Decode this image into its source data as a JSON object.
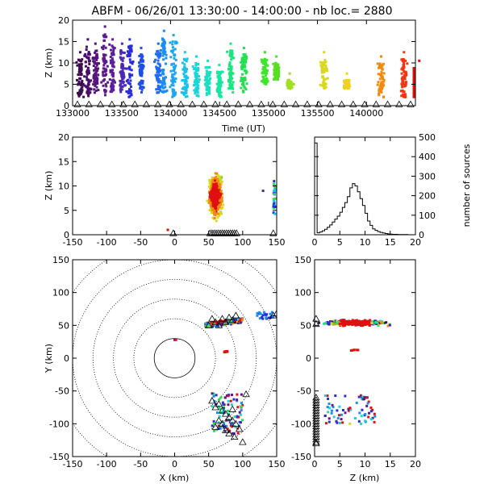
{
  "title": {
    "station": "ABFM",
    "date": "06/26/01",
    "time_range": "13:30:00 - 14:00:00",
    "count_label": "nb loc.=",
    "count_value": "2880"
  },
  "chart_data": [
    {
      "id": "altitude-vs-time",
      "type": "scatter",
      "xlabel": "Time (UT)",
      "ylabel": "Z (km)",
      "xlim": [
        133000,
        140000
      ],
      "ylim": [
        0,
        20
      ],
      "xticks": [
        "133000",
        "133500",
        "134000",
        "134500",
        "135000",
        "135500",
        "140000"
      ],
      "yticks": [
        "0",
        "5",
        "10",
        "15",
        "20"
      ],
      "color_by": "time",
      "clusters": [
        {
          "t": 133040,
          "zmin": 2,
          "zmax": 11,
          "color": "#3d0d50"
        },
        {
          "t": 133120,
          "zmin": 2,
          "zmax": 14,
          "color": "#4b0c6b"
        },
        {
          "t": 133200,
          "zmin": 3,
          "zmax": 13,
          "color": "#55157a"
        },
        {
          "t": 133250,
          "zmin": 2,
          "zmax": 17,
          "color": "#5a1a8a"
        },
        {
          "t": 133330,
          "zmin": 3,
          "zmax": 14,
          "color": "#5c1f9a"
        },
        {
          "t": 133420,
          "zmin": 3,
          "zmax": 13,
          "color": "#4b2bb5"
        },
        {
          "t": 133500,
          "zmin": 2,
          "zmax": 14,
          "color": "#2b2bd6"
        },
        {
          "t": 133600,
          "zmin": 3,
          "zmax": 12,
          "color": "#1f4fe6"
        },
        {
          "t": 133730,
          "zmin": 3,
          "zmax": 13,
          "color": "#1e6cf0"
        },
        {
          "t": 133800,
          "zmin": 3,
          "zmax": 16,
          "color": "#1a8ef0"
        },
        {
          "t": 133850,
          "zmin": 2,
          "zmax": 15,
          "color": "#1aa6f0"
        },
        {
          "t": 133950,
          "zmin": 2,
          "zmax": 11,
          "color": "#19c3e8"
        },
        {
          "t": 134050,
          "zmin": 2,
          "zmax": 10,
          "color": "#19d6d6"
        },
        {
          "t": 134150,
          "zmin": 2,
          "zmax": 9,
          "color": "#19e0c0"
        },
        {
          "t": 134250,
          "zmin": 2,
          "zmax": 8,
          "color": "#19e6a0"
        },
        {
          "t": 134350,
          "zmin": 3,
          "zmax": 13,
          "color": "#1ae680"
        },
        {
          "t": 134500,
          "zmin": 3,
          "zmax": 12,
          "color": "#22e050"
        },
        {
          "t": 134650,
          "zmin": 5,
          "zmax": 11,
          "color": "#3ee62a"
        },
        {
          "t": 134750,
          "zmin": 6,
          "zmax": 10,
          "color": "#58e020"
        },
        {
          "t": 134900,
          "zmin": 4,
          "zmax": 6,
          "color": "#a0e020"
        },
        {
          "t": 135200,
          "zmin": 4,
          "zmax": 11,
          "color": "#d8d820"
        },
        {
          "t": 135400,
          "zmin": 4,
          "zmax": 6,
          "color": "#f0d020"
        },
        {
          "t": 135700,
          "zmin": 2,
          "zmax": 10,
          "color": "#f08a10"
        },
        {
          "t": 135900,
          "zmin": 2,
          "zmax": 11,
          "color": "#f03510"
        },
        {
          "t": 135980,
          "zmin": 2,
          "zmax": 9,
          "color": "#e01010"
        }
      ],
      "markers": "open triangles along Z = 0"
    },
    {
      "id": "altitude-vs-x",
      "type": "scatter",
      "xlabel": "",
      "ylabel": "Z (km)",
      "xlim": [
        -150,
        150
      ],
      "ylim": [
        0,
        20
      ],
      "xticks": [
        "-150",
        "-100",
        "-50",
        "0",
        "50",
        "100",
        "150"
      ],
      "yticks": [
        "0",
        "5",
        "10",
        "15",
        "20"
      ],
      "main_cluster": {
        "xmin": 48,
        "xmax": 78,
        "zmin": 0,
        "zmax": 19,
        "core_x": 60,
        "core_z": 8
      },
      "side_cluster": {
        "x": 148,
        "zmin": 4,
        "zmax": 11
      },
      "isolated": [
        {
          "x": -10,
          "z": 1
        },
        {
          "x": 130,
          "z": 9
        }
      ]
    },
    {
      "id": "altitude-histogram",
      "type": "bar",
      "xlabel": "",
      "ylabel": "number of sources",
      "xlim": [
        0,
        20
      ],
      "ylim": [
        0,
        500
      ],
      "xticks": [
        "0",
        "5",
        "10",
        "15",
        "20"
      ],
      "yticks": [
        "0",
        "100",
        "200",
        "300",
        "400",
        "500"
      ],
      "bin_width": 0.5,
      "bin_start": 0,
      "values": [
        470,
        10,
        14,
        20,
        28,
        38,
        50,
        65,
        80,
        95,
        115,
        140,
        165,
        195,
        240,
        262,
        250,
        220,
        185,
        150,
        110,
        70,
        48,
        30,
        22,
        16,
        12,
        9,
        6,
        4,
        3,
        2,
        2,
        1,
        1,
        1,
        1,
        0,
        0,
        0
      ]
    },
    {
      "id": "plan-view",
      "type": "scatter",
      "xlabel": "X (km)",
      "ylabel": "Y (km)",
      "xlim": [
        -150,
        150
      ],
      "ylim": [
        -150,
        150
      ],
      "xticks": [
        "-150",
        "-100",
        "-50",
        "0",
        "50",
        "100",
        "150"
      ],
      "yticks": [
        "-150",
        "-100",
        "-50",
        "0",
        "50",
        "100",
        "150"
      ],
      "range_rings_km": [
        30,
        60,
        90,
        120,
        150,
        180
      ],
      "north_cluster": {
        "xmin": 45,
        "xmax": 100,
        "ymin": 45,
        "ymax": 70
      },
      "east_cluster": {
        "xmin": 120,
        "xmax": 150,
        "ymin": 60,
        "ymax": 70
      },
      "south_cluster": {
        "xmin": 55,
        "xmax": 100,
        "ymin": -115,
        "ymax": -50
      },
      "red_patch": {
        "x": 75,
        "y": 10
      },
      "station_markers": "open triangles"
    },
    {
      "id": "altitude-vs-y",
      "type": "scatter",
      "xlabel": "Z (km)",
      "ylabel": "",
      "xlim": [
        0,
        20
      ],
      "ylim": [
        -150,
        150
      ],
      "xticks": [
        "0",
        "5",
        "10",
        "15",
        "20"
      ],
      "yticks": [
        "-150",
        "-100",
        "-50",
        "0",
        "50",
        "100",
        "150"
      ],
      "north_cluster": {
        "zmin": 0,
        "zmax": 19,
        "ymin": 45,
        "ymax": 68
      },
      "south_cluster": {
        "zmin": 2,
        "zmax": 12,
        "ymin": -100,
        "ymax": -55
      },
      "red_patch": {
        "z": 8,
        "y": 12
      }
    }
  ]
}
